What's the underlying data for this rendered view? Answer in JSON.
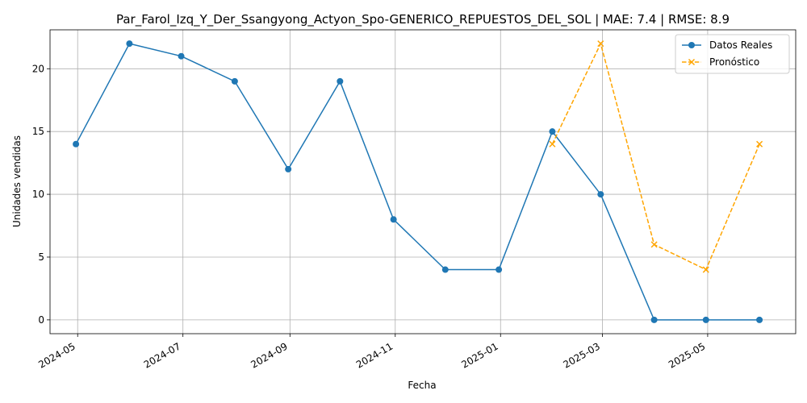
{
  "chart_data": {
    "type": "line",
    "title": "Par_Farol_Izq_Y_Der_Ssangyong_Actyon_Spo-GENERICO_REPUESTOS_DEL_SOL | MAE: 7.4 | RMSE: 8.9",
    "xlabel": "Fecha",
    "ylabel": "Unidades vendidas",
    "x_axis_type": "date",
    "xlim": [
      "2024-04-15",
      "2025-06-21"
    ],
    "ylim": [
      -1.1,
      23.1
    ],
    "x_ticks": [
      "2024-05-01",
      "2024-07-01",
      "2024-09-01",
      "2024-11-01",
      "2025-01-01",
      "2025-03-01",
      "2025-05-01"
    ],
    "x_tick_labels": [
      "2024-05",
      "2024-07",
      "2024-09",
      "2024-11",
      "2025-01",
      "2025-03",
      "2025-05"
    ],
    "y_ticks": [
      0,
      5,
      10,
      15,
      20
    ],
    "y_tick_labels": [
      "0",
      "5",
      "10",
      "15",
      "20"
    ],
    "grid": true,
    "legend_position": "top-right",
    "series": [
      {
        "name": "Datos Reales",
        "color": "#1f77b4",
        "line_style": "solid",
        "marker": "circle",
        "x": [
          "2024-04-30",
          "2024-05-31",
          "2024-06-30",
          "2024-07-31",
          "2024-08-31",
          "2024-09-30",
          "2024-10-31",
          "2024-11-30",
          "2024-12-31",
          "2025-01-31",
          "2025-02-28",
          "2025-03-31",
          "2025-04-30",
          "2025-05-31"
        ],
        "values": [
          14,
          22,
          21,
          19,
          12,
          19,
          8,
          4,
          4,
          15,
          10,
          0,
          0,
          0
        ]
      },
      {
        "name": "Pronóstico",
        "color": "#ffa500",
        "line_style": "dashed",
        "marker": "x",
        "x": [
          "2025-01-31",
          "2025-02-28",
          "2025-03-31",
          "2025-04-30",
          "2025-05-31"
        ],
        "values": [
          14,
          22,
          6,
          4,
          14
        ]
      }
    ]
  }
}
